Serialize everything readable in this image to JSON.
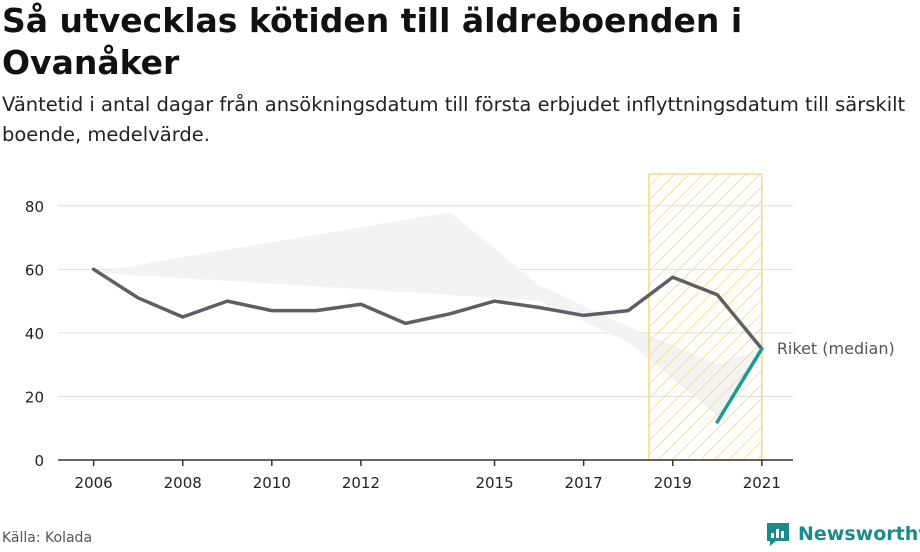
{
  "title": "Så utvecklas kötiden till äldreboenden i Ovanåker",
  "subtitle": "Väntetid i antal dagar från ansökningsdatum till första erbjudet inflyttningsdatum till särskilt boende, medelvärde.",
  "source": "Källa: Kolada",
  "brand": "Newsworthy",
  "colors": {
    "main_line": "#5f5e64",
    "recent_line": "#1a9b8c",
    "range_fill": "#f3f3f3",
    "highlight": "#f5d88a",
    "grid": "#dddddd",
    "brand": "#1a8a8a"
  },
  "chart_data": {
    "type": "line",
    "x_ticks": [
      2006,
      2008,
      2010,
      2012,
      2015,
      2017,
      2019,
      2021
    ],
    "y_ticks": [
      0,
      20,
      40,
      60,
      80
    ],
    "ylim": [
      0,
      90
    ],
    "xlim": [
      2005.2,
      2021.7
    ],
    "grid": "horizontal",
    "highlight_period": [
      2018.5,
      2021
    ],
    "series": [
      {
        "name": "",
        "style": "main",
        "x": [
          2006,
          2007,
          2008,
          2009,
          2010,
          2011,
          2012,
          2013,
          2014,
          2015,
          2016,
          2017,
          2018,
          2019,
          2020,
          2021
        ],
        "y": [
          60,
          51,
          45,
          50,
          47,
          47,
          49,
          43,
          46,
          50,
          48,
          45.5,
          47,
          57.5,
          52,
          35
        ]
      },
      {
        "name": "",
        "style": "recent",
        "x": [
          2020,
          2021
        ],
        "y": [
          12,
          35
        ]
      }
    ],
    "range_band": {
      "x": [
        2006,
        2014,
        2016,
        2018,
        2020,
        2021
      ],
      "upper": [
        59,
        78,
        55,
        42,
        30,
        35
      ],
      "lower": [
        59,
        52,
        50,
        37,
        14,
        35
      ]
    },
    "annotations": [
      {
        "text": "Riket (median)",
        "x": 2021,
        "y": 35
      }
    ]
  }
}
